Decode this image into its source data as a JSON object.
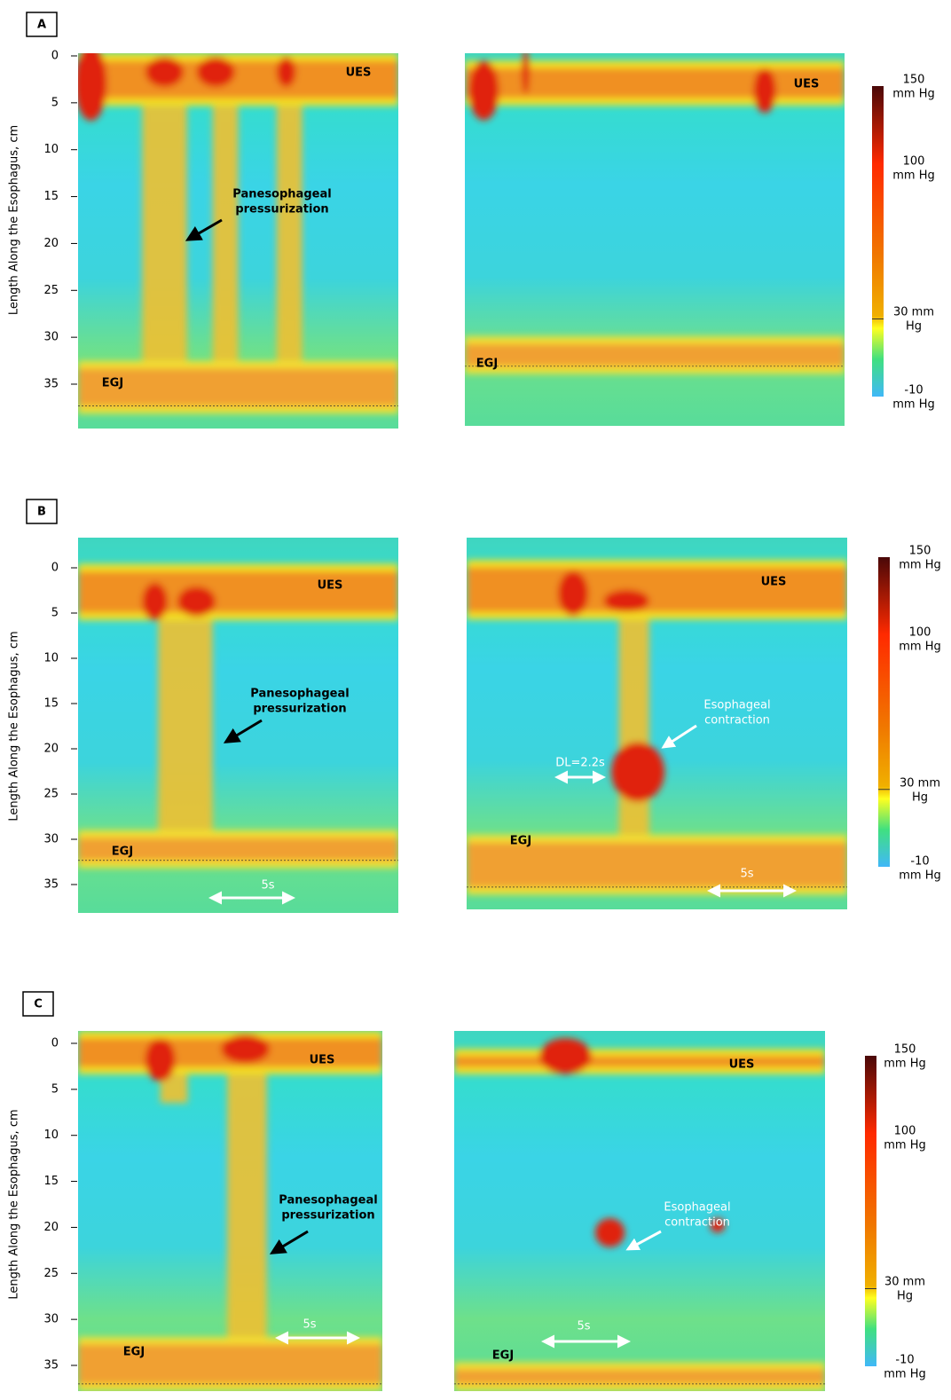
{
  "panels": [
    {
      "label": "A",
      "y_axis_label": "Length Along the Esophagus, cm",
      "yticks": [
        0,
        5,
        10,
        15,
        20,
        25,
        30,
        35
      ],
      "plots": [
        {
          "annotations": [
            "UES",
            [
              "Panesophageal",
              "pressurization"
            ],
            "EGJ"
          ]
        },
        {
          "annotations": [
            "UES",
            "EGJ"
          ]
        }
      ],
      "colorbar": [
        [
          "150",
          "mm Hg"
        ],
        [
          "100",
          "mm Hg"
        ],
        [
          "30 mm",
          "Hg"
        ],
        [
          "-10",
          "mm Hg"
        ]
      ]
    },
    {
      "label": "B",
      "y_axis_label": "Length Along the Esophagus, cm",
      "yticks": [
        0,
        5,
        10,
        15,
        20,
        25,
        30,
        35
      ],
      "plots": [
        {
          "annotations": [
            "UES",
            [
              "Panesophageal",
              "pressurization"
            ],
            "EGJ",
            "5s"
          ]
        },
        {
          "annotations": [
            "UES",
            [
              "Esophageal",
              "contraction"
            ],
            "DL=2.2s",
            "EGJ",
            "5s"
          ]
        }
      ],
      "colorbar": [
        [
          "150",
          "mm Hg"
        ],
        [
          "100",
          "mm Hg"
        ],
        [
          "30 mm",
          "Hg"
        ],
        [
          "-10",
          "mm Hg"
        ]
      ]
    },
    {
      "label": "C",
      "y_axis_label": "Length Along the Esophagus, cm",
      "yticks": [
        0,
        5,
        10,
        15,
        20,
        25,
        30,
        35
      ],
      "plots": [
        {
          "annotations": [
            "UES",
            [
              "Panesophageal",
              "pressurization"
            ],
            "5s",
            "EGJ"
          ]
        },
        {
          "annotations": [
            "UES",
            [
              "Esophageal",
              "contraction"
            ],
            "5s",
            "EGJ"
          ]
        }
      ],
      "colorbar": [
        [
          "150",
          "mm Hg"
        ],
        [
          "100",
          "mm Hg"
        ],
        [
          "30 mm",
          "Hg"
        ],
        [
          "-10",
          "mm Hg"
        ]
      ]
    }
  ]
}
